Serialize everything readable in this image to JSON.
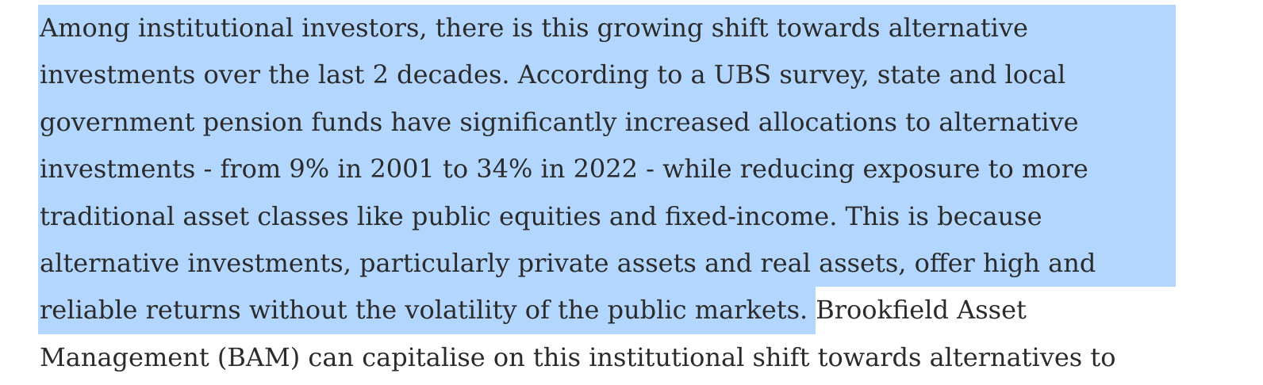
{
  "paragraph": {
    "lines": [
      "Among institutional investors, there is this growing shift towards alternative",
      "investments over the last 2 decades. According to a UBS survey, state and local",
      "government pension funds have significantly increased allocations to alternative",
      "investments - from 9% in 2001 to 34% in 2022 - while reducing exposure to more",
      "traditional asset classes like public equities and fixed-income. This is because",
      "alternative investments, particularly private assets and real assets, offer high and"
    ],
    "line7_selected": "reliable returns without the volatility of the public markets.",
    "line7_rest": "Brookfield Asset",
    "line8": "Management (BAM) can capitalise on this institutional shift towards alternatives to"
  },
  "selection_color": "#b3d6fe",
  "text_color": "#2b2b2b"
}
